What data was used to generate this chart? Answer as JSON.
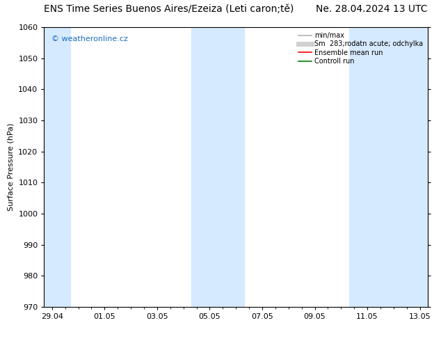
{
  "title": "ENS Time Series Buenos Aires/Ezeiza (Leti caron;tě)         Ne. 28.04.2024 13 UTC",
  "title_left": "ENS Time Series Buenos Aires/Ezeiza (Leti caron;tě)",
  "title_right": "Ne. 28.04.2024 13 UTC",
  "ylabel": "Surface Pressure (hPa)",
  "ylim": [
    970,
    1060
  ],
  "yticks": [
    970,
    980,
    990,
    1000,
    1010,
    1020,
    1030,
    1040,
    1050,
    1060
  ],
  "xtick_labels": [
    "29.04",
    "01.05",
    "03.05",
    "05.05",
    "07.05",
    "09.05",
    "11.05",
    "13.05"
  ],
  "xtick_positions": [
    0,
    2,
    4,
    6,
    8,
    10,
    12,
    14
  ],
  "xlim": [
    -0.3,
    14.3
  ],
  "shaded_bands": [
    {
      "x_start": -0.3,
      "x_end": 0.7
    },
    {
      "x_start": 5.3,
      "x_end": 7.3
    },
    {
      "x_start": 11.3,
      "x_end": 14.3
    }
  ],
  "shaded_color": "#d6eaff",
  "background_color": "#ffffff",
  "watermark_text": "© weatheronline.cz",
  "watermark_color": "#1a6bbf",
  "legend_entries": [
    {
      "label": "min/max",
      "color": "#b0b0b0",
      "lw": 1.2
    },
    {
      "label": "Sm  283;rodatn acute; odchylka",
      "color": "#d0d0d0",
      "lw": 5
    },
    {
      "label": "Ensemble mean run",
      "color": "#ff0000",
      "lw": 1.2
    },
    {
      "label": "Controll run",
      "color": "#008000",
      "lw": 1.2
    }
  ],
  "title_fontsize": 10,
  "axis_fontsize": 8,
  "tick_fontsize": 8
}
